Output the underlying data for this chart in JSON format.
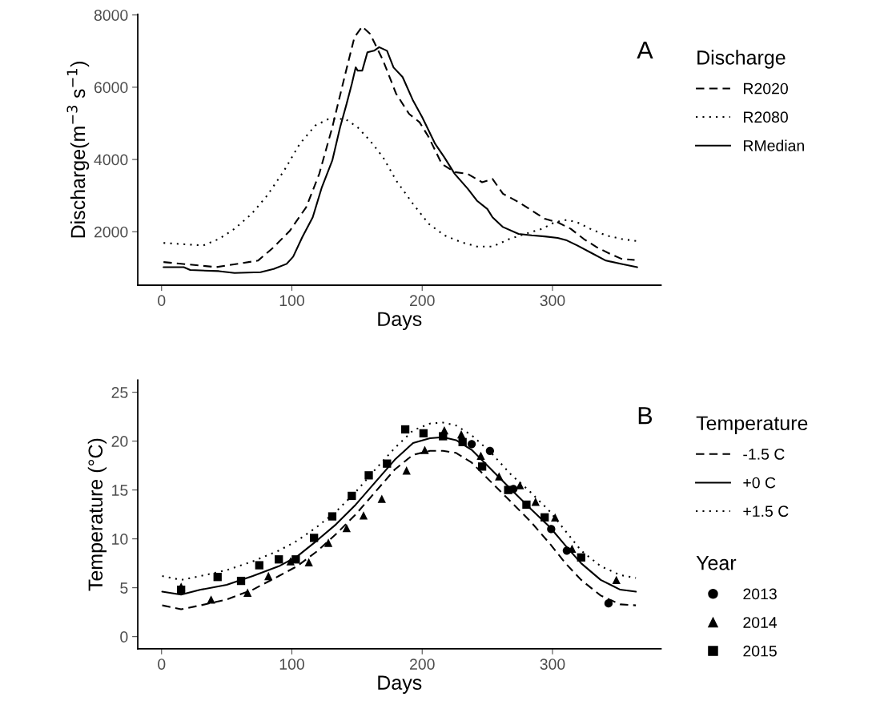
{
  "chart_data": [
    {
      "type": "line",
      "xlabel": "Days",
      "ylabel": "Discharge(m$^{−3}$ s$^{−1}$)",
      "legend_title": "Discharge",
      "legend": "right",
      "annotations": [
        "A"
      ],
      "xlim": [
        -18.25,
        383.25
      ],
      "xticks": [
        0,
        100,
        200,
        300
      ],
      "ylim": [
        520,
        8020
      ],
      "yticks": [
        2000,
        4000,
        6000,
        8000
      ],
      "grid": false,
      "series": [
        {
          "name": "R2020",
          "color": "#000000",
          "line_style": "dashed",
          "x": [
            1.5,
            42,
            74,
            86,
            98.5,
            111,
            121,
            131,
            141,
            148,
            154,
            160,
            170,
            180,
            190,
            198,
            205,
            215,
            225,
            235,
            246,
            254,
            262,
            274,
            284,
            294,
            304,
            314,
            324,
            334,
            344,
            353,
            363
          ],
          "values": [
            1160,
            1020,
            1200,
            1570,
            2030,
            2680,
            3600,
            4890,
            6370,
            7380,
            7680,
            7480,
            6740,
            5820,
            5260,
            5030,
            4620,
            3880,
            3650,
            3600,
            3370,
            3460,
            3050,
            2820,
            2590,
            2360,
            2260,
            2080,
            1800,
            1570,
            1390,
            1250,
            1220
          ]
        },
        {
          "name": "R2080",
          "color": "#000000",
          "line_style": "dotted",
          "x": [
            1.5,
            32,
            44,
            56,
            69,
            81,
            94,
            106,
            118,
            128,
            141,
            150.5,
            160,
            170,
            180,
            193,
            205,
            217,
            230,
            242,
            254,
            267,
            279,
            292,
            301.5,
            311,
            319,
            329,
            341,
            353,
            365
          ],
          "values": [
            1690,
            1620,
            1800,
            2080,
            2490,
            3000,
            3690,
            4430,
            4940,
            5120,
            5120,
            4890,
            4520,
            4060,
            3420,
            2770,
            2220,
            1900,
            1710,
            1590,
            1590,
            1800,
            1940,
            2080,
            2260,
            2330,
            2260,
            2080,
            1900,
            1800,
            1740
          ]
        },
        {
          "name": "RMedian",
          "color": "#000000",
          "line_style": "solid",
          "x": [
            1.5,
            17,
            22,
            44,
            56,
            76,
            86,
            96,
            101,
            108,
            116,
            123,
            131,
            137,
            142,
            146,
            149,
            150.5,
            154,
            158,
            163,
            167,
            173,
            178,
            185,
            193,
            200,
            210,
            217,
            225,
            235,
            242,
            250,
            254,
            262,
            274,
            284,
            294,
            304,
            311,
            319,
            329,
            341,
            353,
            365
          ],
          "values": [
            1020,
            1020,
            940,
            910,
            860,
            880,
            970,
            1110,
            1310,
            1850,
            2400,
            3230,
            3970,
            4890,
            5540,
            6090,
            6550,
            6460,
            6460,
            6970,
            7010,
            7110,
            7010,
            6550,
            6280,
            5630,
            5170,
            4430,
            4060,
            3600,
            3190,
            2860,
            2630,
            2400,
            2130,
            1940,
            1900,
            1870,
            1830,
            1760,
            1620,
            1430,
            1200,
            1110,
            1020
          ]
        }
      ]
    },
    {
      "type": "line",
      "xlabel": "Days",
      "ylabel": "Temperature (°C)",
      "legend_title": [
        "Temperature",
        "Year"
      ],
      "legend": "right",
      "annotations": [
        "B"
      ],
      "xlim": [
        -18.25,
        383.25
      ],
      "xticks": [
        0,
        100,
        200,
        300
      ],
      "ylim": [
        -1.25,
        26.25
      ],
      "yticks": [
        0,
        5,
        10,
        15,
        20,
        25
      ],
      "grid": false,
      "series": [
        {
          "name": "-1.5 C",
          "type": "line",
          "color": "#000000",
          "line_style": "dashed",
          "x": [
            0.5,
            15,
            30,
            50,
            70,
            90,
            104,
            119,
            134,
            149,
            164,
            179,
            193,
            206,
            216,
            226,
            238,
            253,
            268,
            283,
            298,
            310,
            322,
            337,
            352,
            364
          ],
          "values": [
            3.2,
            2.8,
            3.2,
            3.8,
            4.8,
            6.2,
            7.2,
            8.7,
            10.5,
            12.5,
            14.8,
            17.1,
            18.6,
            19.0,
            19.0,
            18.8,
            17.8,
            15.8,
            13.8,
            11.8,
            9.5,
            7.5,
            5.8,
            4.2,
            3.3,
            3.2
          ]
        },
        {
          "name": "+0 C",
          "type": "line",
          "color": "#000000",
          "line_style": "solid",
          "x": [
            0.5,
            15,
            30,
            50,
            70,
            90,
            104,
            119,
            134,
            149,
            164,
            179,
            193,
            206,
            216,
            226,
            238,
            253,
            268,
            283,
            298,
            310,
            322,
            337,
            352,
            364
          ],
          "values": [
            4.6,
            4.3,
            4.8,
            5.3,
            6.2,
            7.2,
            8.2,
            9.8,
            11.5,
            13.5,
            15.8,
            18.1,
            19.8,
            20.3,
            20.4,
            20.1,
            19.1,
            17.1,
            15.1,
            13.1,
            11.2,
            9.3,
            7.5,
            5.8,
            4.8,
            4.6
          ]
        },
        {
          "name": "+1.5 C",
          "type": "line",
          "color": "#000000",
          "line_style": "dotted",
          "x": [
            0.5,
            15,
            30,
            50,
            70,
            90,
            104,
            119,
            134,
            149,
            164,
            179,
            193,
            206,
            216,
            226,
            238,
            253,
            268,
            283,
            298,
            310,
            322,
            337,
            352,
            364
          ],
          "values": [
            6.2,
            5.8,
            6.2,
            6.8,
            7.7,
            8.8,
            9.8,
            11.2,
            12.8,
            14.8,
            17.1,
            19.3,
            21.1,
            21.8,
            21.9,
            21.6,
            20.6,
            18.8,
            16.6,
            14.8,
            12.8,
            10.8,
            8.8,
            7.2,
            6.3,
            6.0
          ]
        },
        {
          "name": "2013",
          "type": "scatter",
          "color": "#000000",
          "marker": "circle",
          "x": [
            238,
            252,
            270,
            299,
            311,
            343
          ],
          "values": [
            19.7,
            19.0,
            15.1,
            11.0,
            8.8,
            3.4
          ]
        },
        {
          "name": "2014",
          "type": "scatter",
          "color": "#000000",
          "marker": "triangle",
          "x": [
            15,
            38,
            66,
            82,
            99,
            113,
            128,
            142,
            155,
            169,
            188,
            202,
            217,
            230,
            245,
            259,
            275,
            287,
            302,
            315,
            349
          ],
          "values": [
            5.1,
            3.8,
            4.5,
            6.2,
            7.7,
            7.6,
            9.6,
            11.1,
            12.4,
            14.1,
            17.0,
            19.1,
            21.1,
            20.7,
            18.5,
            16.4,
            15.5,
            13.8,
            12.2,
            9.0,
            5.8
          ]
        },
        {
          "name": "2015",
          "type": "scatter",
          "color": "#000000",
          "marker": "square",
          "x": [
            15,
            43,
            61,
            75,
            90,
            103,
            117,
            131,
            146,
            159,
            173,
            187,
            201,
            216,
            231,
            246,
            266,
            280,
            294,
            322
          ],
          "values": [
            4.8,
            6.1,
            5.7,
            7.3,
            7.9,
            7.9,
            10.1,
            12.3,
            14.4,
            16.5,
            17.7,
            21.2,
            20.8,
            20.5,
            19.9,
            17.4,
            15.0,
            13.5,
            12.2,
            8.1
          ]
        }
      ]
    }
  ]
}
